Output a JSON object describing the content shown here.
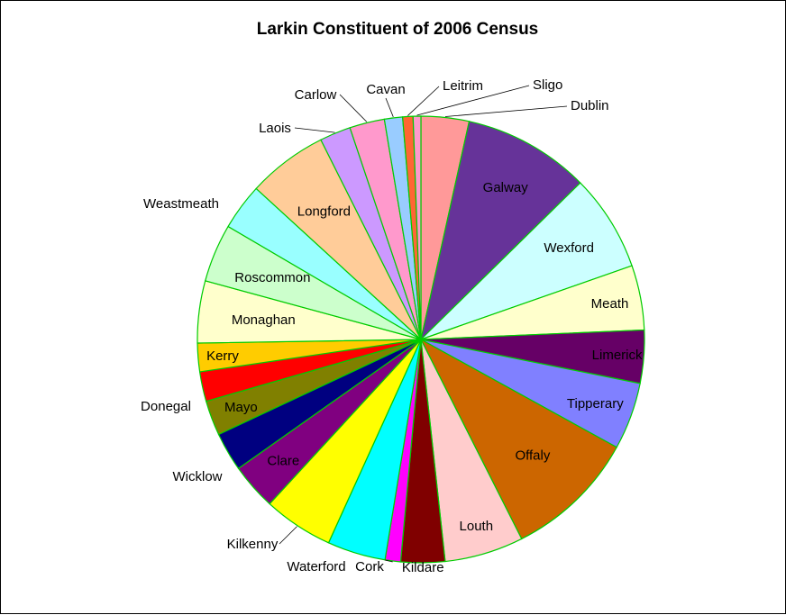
{
  "chart_data": {
    "type": "pie",
    "title": "Larkin Constituent of 2006 Census",
    "legend": "none",
    "slices": [
      {
        "label": "Dublin",
        "value": 3.7,
        "color": "#FF9999",
        "label_inside": false
      },
      {
        "label": "Galway",
        "value": 9.8,
        "color": "#663399",
        "label_inside": true
      },
      {
        "label": "Wexford",
        "value": 7.5,
        "color": "#CCFFFF",
        "label_inside": true
      },
      {
        "label": "Meath",
        "value": 5.0,
        "color": "#FFFFCC",
        "label_inside": true
      },
      {
        "label": "Limerick",
        "value": 4.1,
        "color": "#660066",
        "label_inside": true
      },
      {
        "label": "Tipperary",
        "value": 5.2,
        "color": "#8080FF",
        "label_inside": true
      },
      {
        "label": "Offaly",
        "value": 10.2,
        "color": "#CC6600",
        "label_inside": true
      },
      {
        "label": "Louth",
        "value": 6.1,
        "color": "#FFCCCC",
        "label_inside": true
      },
      {
        "label": "Kildare",
        "value": 3.4,
        "color": "#800000",
        "label_inside": true
      },
      {
        "label": "Cork",
        "value": 1.2,
        "color": "#FF00FF",
        "label_inside": false
      },
      {
        "label": "Waterford",
        "value": 4.5,
        "color": "#00FFFF",
        "label_inside": false
      },
      {
        "label": "Kilkenny",
        "value": 5.4,
        "color": "#FFFF00",
        "label_inside": false
      },
      {
        "label": "Clare",
        "value": 3.6,
        "color": "#800080",
        "label_inside": true
      },
      {
        "label": "Wicklow",
        "value": 3.0,
        "color": "#000080",
        "label_inside": false
      },
      {
        "label": "Mayo",
        "value": 2.7,
        "color": "#808000",
        "label_inside": true
      },
      {
        "label": "Donegal",
        "value": 2.3,
        "color": "#FF0000",
        "label_inside": false
      },
      {
        "label": "Kerry",
        "value": 2.2,
        "color": "#FFCC00",
        "label_inside": true
      },
      {
        "label": "Monaghan",
        "value": 4.8,
        "color": "#FFFFCC",
        "label_inside": true
      },
      {
        "label": "Roscommon",
        "value": 4.5,
        "color": "#CCFFCC",
        "label_inside": true
      },
      {
        "label": "Weastmeath",
        "value": 3.6,
        "color": "#99FFFF",
        "label_inside": false
      },
      {
        "label": "Longford",
        "value": 6.2,
        "color": "#FFCC99",
        "label_inside": true
      },
      {
        "label": "Laois",
        "value": 2.4,
        "color": "#CC99FF",
        "label_inside": false
      },
      {
        "label": "Carlow",
        "value": 2.7,
        "color": "#FF99CC",
        "label_inside": false
      },
      {
        "label": "Cavan",
        "value": 1.4,
        "color": "#99CCFF",
        "label_inside": false
      },
      {
        "label": "Leitrim",
        "value": 0.8,
        "color": "#FF6633",
        "label_inside": false
      },
      {
        "label": "Sligo",
        "value": 0.6,
        "color": "#FF99CC",
        "label_inside": false
      }
    ],
    "slice_border_color": "#00CC00"
  }
}
